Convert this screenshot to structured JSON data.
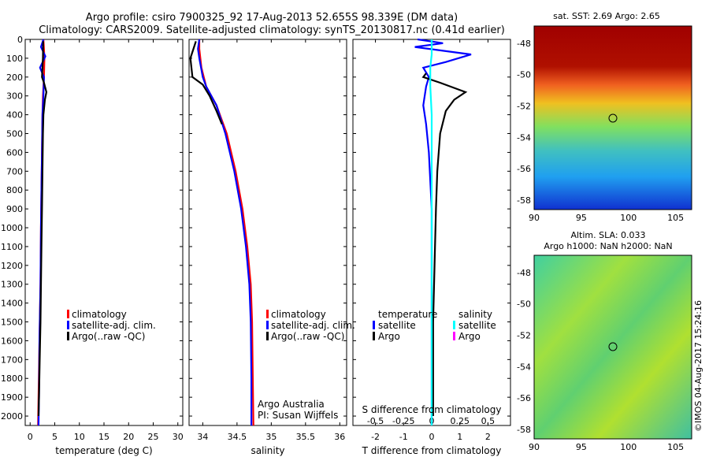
{
  "header": {
    "line1": "Argo profile: csiro 7900325_92 17-Aug-2013 52.655S 98.339E (DM data)",
    "line2": "Climatology: CARS2009. Satellite-adjusted climatology: synTS_20130817.nc (0.41d earlier)"
  },
  "colors": {
    "climatology": "#ff0000",
    "satellite": "#0000ff",
    "argo": "#000000",
    "s_satellite": "#00ffff",
    "s_argo": "#ff00ff"
  },
  "panels": {
    "temperature": {
      "xlabel": "temperature (deg C)",
      "legend": [
        "climatology",
        "satellite-adj. clim.",
        "Argo(..raw -QC)"
      ]
    },
    "salinity": {
      "xlabel": "salinity",
      "legend": [
        "climatology",
        "satellite-adj. clim.",
        "Argo(..raw -QC)"
      ],
      "credit1": "Argo Australia",
      "credit2": "PI: Susan Wijffels"
    },
    "difference": {
      "temp_header": "temperature",
      "sal_header": "salinity",
      "legend_sat": "satellite",
      "legend_argo": "Argo",
      "top_axis_label": "S difference from climatology",
      "xlabel": "T difference from climatology"
    },
    "sst_map": {
      "title": "sat. SST: 2.69 Argo: 2.65"
    },
    "sla_map": {
      "title1": "Altim. SLA: 0.033",
      "title2": "Argo h1000: NaN h2000: NaN"
    },
    "footer": "©IMOS 04-Aug-2017 15:24:16"
  },
  "chart_data": [
    {
      "type": "line",
      "panel": "temperature",
      "xlabel": "temperature (deg C)",
      "xlim": [
        -1,
        31
      ],
      "ylim": [
        2050,
        0
      ],
      "xticks": [
        0,
        5,
        10,
        15,
        20,
        25,
        30
      ],
      "yticks": [
        0,
        100,
        200,
        300,
        400,
        500,
        600,
        700,
        800,
        900,
        1000,
        1100,
        1200,
        1300,
        1400,
        1500,
        1600,
        1700,
        1800,
        1900,
        2000
      ],
      "series": [
        {
          "name": "climatology",
          "points": [
            [
              2.7,
              0
            ],
            [
              2.8,
              50
            ],
            [
              2.9,
              100
            ],
            [
              2.8,
              200
            ],
            [
              2.6,
              300
            ],
            [
              2.5,
              400
            ],
            [
              2.4,
              600
            ],
            [
              2.3,
              800
            ],
            [
              2.2,
              1000
            ],
            [
              2.1,
              1300
            ],
            [
              1.9,
              1600
            ],
            [
              1.7,
              1900
            ],
            [
              1.6,
              2050
            ]
          ]
        },
        {
          "name": "satellite-adj. clim.",
          "points": [
            [
              2.7,
              0
            ],
            [
              2.2,
              40
            ],
            [
              3.1,
              90
            ],
            [
              2.0,
              150
            ],
            [
              2.8,
              200
            ],
            [
              2.7,
              300
            ],
            [
              2.5,
              400
            ],
            [
              2.4,
              600
            ],
            [
              2.3,
              800
            ],
            [
              2.2,
              1000
            ],
            [
              2.1,
              1300
            ],
            [
              1.9,
              1600
            ],
            [
              1.8,
              1900
            ],
            [
              1.7,
              2050
            ]
          ]
        },
        {
          "name": "Argo(..raw -QC)",
          "points": [
            [
              2.65,
              10
            ],
            [
              2.6,
              100
            ],
            [
              2.4,
              200
            ],
            [
              2.8,
              230
            ],
            [
              3.3,
              280
            ],
            [
              3.0,
              320
            ],
            [
              2.7,
              400
            ],
            [
              2.6,
              500
            ],
            [
              2.5,
              700
            ],
            [
              2.4,
              900
            ],
            [
              2.3,
              1100
            ],
            [
              2.2,
              1300
            ],
            [
              2.1,
              1500
            ],
            [
              1.95,
              1700
            ],
            [
              1.8,
              1900
            ],
            [
              1.7,
              2000
            ]
          ]
        }
      ]
    },
    {
      "type": "line",
      "panel": "salinity",
      "xlabel": "salinity",
      "xlim": [
        33.8,
        36.1
      ],
      "ylim": [
        2050,
        0
      ],
      "xticks": [
        34,
        34.5,
        35,
        35.5,
        36
      ],
      "series": [
        {
          "name": "climatology",
          "points": [
            [
              33.95,
              0
            ],
            [
              33.95,
              50
            ],
            [
              33.98,
              150
            ],
            [
              34.05,
              250
            ],
            [
              34.2,
              350
            ],
            [
              34.35,
              500
            ],
            [
              34.48,
              700
            ],
            [
              34.58,
              900
            ],
            [
              34.65,
              1100
            ],
            [
              34.7,
              1300
            ],
            [
              34.72,
              1500
            ],
            [
              34.73,
              1800
            ],
            [
              34.74,
              2050
            ]
          ]
        },
        {
          "name": "satellite-adj. clim.",
          "points": [
            [
              33.95,
              0
            ],
            [
              33.93,
              50
            ],
            [
              33.95,
              100
            ],
            [
              34.0,
              200
            ],
            [
              34.05,
              250
            ],
            [
              34.2,
              350
            ],
            [
              34.33,
              500
            ],
            [
              34.46,
              700
            ],
            [
              34.56,
              900
            ],
            [
              34.63,
              1100
            ],
            [
              34.68,
              1300
            ],
            [
              34.7,
              1500
            ],
            [
              34.71,
              1800
            ],
            [
              34.71,
              2050
            ]
          ]
        },
        {
          "name": "Argo(..raw -QC)",
          "points": [
            [
              33.9,
              10
            ],
            [
              33.82,
              100
            ],
            [
              33.85,
              200
            ],
            [
              34.0,
              240
            ],
            [
              34.1,
              300
            ],
            [
              34.2,
              380
            ],
            [
              34.28,
              450
            ]
          ]
        }
      ]
    },
    {
      "type": "line",
      "panel": "difference",
      "xlabel": "T difference from climatology",
      "xlim": [
        -2.8,
        2.8
      ],
      "ylim": [
        2050,
        0
      ],
      "xticks": [
        -2,
        -1,
        0,
        1,
        2
      ],
      "top_xlabel": "S difference from climatology",
      "top_xticks": [
        "-0.5",
        "-0.25",
        "0",
        "0.25",
        "0.5"
      ],
      "series": [
        {
          "name": "temperature satellite",
          "points": [
            [
              -0.5,
              0
            ],
            [
              0.4,
              20
            ],
            [
              -0.6,
              40
            ],
            [
              1.4,
              80
            ],
            [
              0.5,
              120
            ],
            [
              -0.3,
              150
            ],
            [
              -0.1,
              200
            ],
            [
              -0.2,
              250
            ],
            [
              -0.3,
              350
            ],
            [
              -0.2,
              450
            ],
            [
              -0.1,
              600
            ],
            [
              0,
              900
            ],
            [
              0,
              1400
            ],
            [
              0,
              2050
            ]
          ]
        },
        {
          "name": "temperature Argo",
          "points": [
            [
              -0.2,
              180
            ],
            [
              -0.3,
              200
            ],
            [
              0.3,
              230
            ],
            [
              1.2,
              280
            ],
            [
              0.8,
              320
            ],
            [
              0.5,
              380
            ],
            [
              0.3,
              500
            ],
            [
              0.2,
              700
            ],
            [
              0.15,
              900
            ],
            [
              0.1,
              1200
            ],
            [
              0.05,
              1500
            ],
            [
              0.05,
              1900
            ],
            [
              0.05,
              2000
            ]
          ]
        },
        {
          "name": "salinity satellite",
          "points": [
            [
              0,
              0
            ],
            [
              0,
              80
            ],
            [
              -0.05,
              150
            ],
            [
              -0.05,
              250
            ],
            [
              0,
              400
            ],
            [
              0,
              700
            ],
            [
              0,
              1000
            ],
            [
              0,
              1500
            ],
            [
              0,
              2050
            ]
          ]
        }
      ]
    }
  ]
}
